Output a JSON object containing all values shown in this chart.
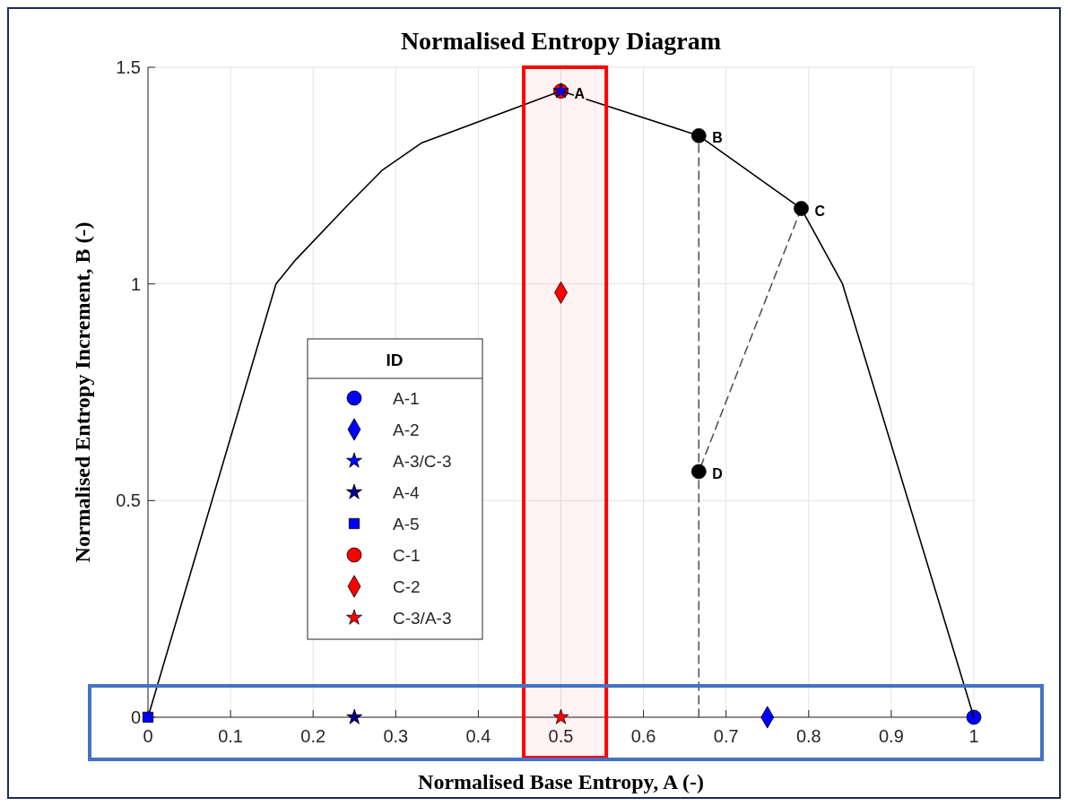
{
  "chart_data": {
    "type": "scatter",
    "title": "Normalised Entropy Diagram",
    "xlabel": "Normalised Base Entropy, A (-)",
    "ylabel": "Normalised Entropy Increment, B (-)",
    "legend_title": "ID",
    "legend": "left",
    "grid": true,
    "xlim": [
      0,
      1
    ],
    "xticks": [
      0,
      0.1,
      0.2,
      0.3,
      0.4,
      0.5,
      0.6,
      0.7,
      0.8,
      0.9,
      1
    ],
    "ylim": [
      0,
      1.5
    ],
    "yticks": [
      0,
      0.5,
      1,
      1.5
    ],
    "series": [
      {
        "type": "line",
        "color": "#000000",
        "marker": "none",
        "line_style": "solid",
        "x": [
          0,
          0.155,
          0.179,
          0.244,
          0.284,
          0.331,
          0.5,
          0.667,
          0.791,
          0.841,
          1
        ],
        "values": [
          0,
          1.0,
          1.056,
          1.186,
          1.263,
          1.325,
          1.445,
          1.342,
          1.174,
          1.0,
          0
        ]
      },
      {
        "type": "line",
        "color": "#555555",
        "marker": "none",
        "line_style": "dashed",
        "x": [
          0.667,
          0.667
        ],
        "values": [
          0,
          1.342
        ]
      },
      {
        "type": "line",
        "color": "#555555",
        "marker": "none",
        "line_style": "dashed",
        "x": [
          0.791,
          0.667
        ],
        "values": [
          1.174,
          0.567
        ]
      },
      {
        "type": "scatter",
        "color": "#000000",
        "marker": "circle",
        "x": [
          0.667,
          0.791,
          0.667
        ],
        "values": [
          1.342,
          1.174,
          0.567
        ]
      },
      {
        "name": "A-1",
        "color": "#0000ff",
        "marker": "circle",
        "x": [
          1
        ],
        "values": [
          0
        ]
      },
      {
        "name": "A-2",
        "color": "#0000ff",
        "marker": "diamond",
        "x": [
          0.75
        ],
        "values": [
          0
        ]
      },
      {
        "name": "A-3/C-3",
        "color": "#0000ff",
        "marker": "star",
        "x": [
          0.5
        ],
        "values": [
          1.445
        ]
      },
      {
        "name": "A-4",
        "color": "#00008b",
        "marker": "star",
        "x": [
          0.25
        ],
        "values": [
          0
        ]
      },
      {
        "name": "A-5",
        "color": "#0000ff",
        "marker": "square",
        "x": [
          0
        ],
        "values": [
          0
        ]
      },
      {
        "name": "C-1",
        "color": "#ff0000",
        "marker": "circle",
        "x": [
          0.5
        ],
        "values": [
          1.445
        ]
      },
      {
        "name": "C-2",
        "color": "#ff0000",
        "marker": "diamond",
        "x": [
          0.5
        ],
        "values": [
          0.98
        ]
      },
      {
        "name": "C-3/A-3",
        "color": "#ff0000",
        "marker": "star",
        "x": [
          0.5
        ],
        "values": [
          0
        ]
      }
    ],
    "bands": [
      {
        "axis": "x",
        "from": 0.455,
        "to": 0.555,
        "color": "#ff0000"
      }
    ],
    "annotations": [
      {
        "text": "A",
        "x": 0.5,
        "y": 1.445
      },
      {
        "text": "B",
        "x": 0.667,
        "y": 1.342
      },
      {
        "text": "C",
        "x": 0.791,
        "y": 1.174
      },
      {
        "text": "D",
        "x": 0.667,
        "y": 0.567
      }
    ]
  }
}
